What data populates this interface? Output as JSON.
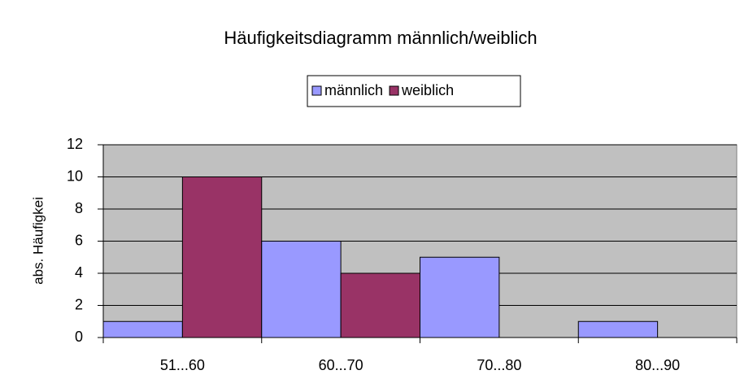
{
  "chart_data": {
    "type": "bar",
    "title": "Häufigkeitsdiagramm männlich/weiblich",
    "y_label": "abs. Häufigkei",
    "categories": [
      "51...60",
      "60...70",
      "70...80",
      "80...90"
    ],
    "series": [
      {
        "name": "männlich",
        "color": "#9999ff",
        "values": [
          1,
          6,
          5,
          1
        ]
      },
      {
        "name": "weiblich",
        "color": "#993366",
        "values": [
          10,
          4,
          0,
          0
        ]
      }
    ],
    "ylim": [
      0,
      12
    ],
    "yticks": [
      0,
      2,
      4,
      6,
      8,
      10,
      12
    ],
    "grid": true,
    "legend": "top"
  }
}
